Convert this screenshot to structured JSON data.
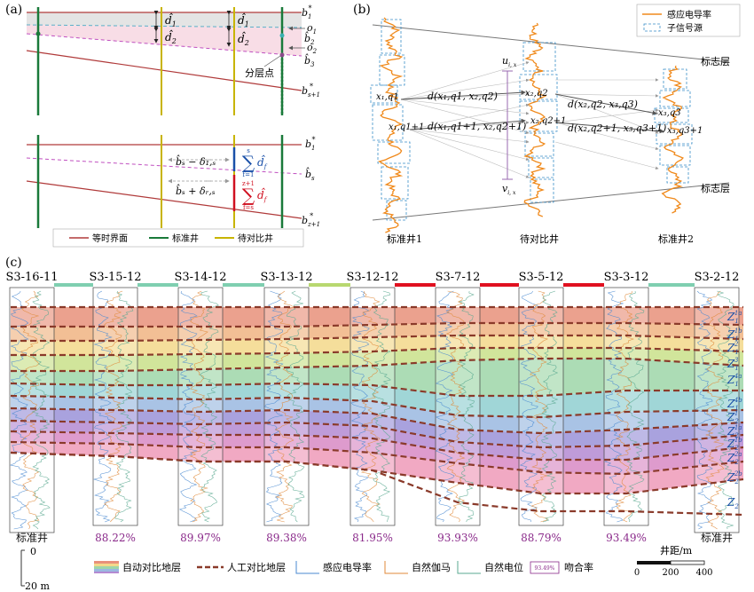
{
  "panel_a": {
    "label": "(a)",
    "top_labels": {
      "b1": "b",
      "b1_sub": "1",
      "b1_sup": "*",
      "b2": "b̂",
      "b2_sub": "2",
      "b3": "b̂",
      "b3_sub": "3",
      "bs1": "b",
      "bs1_sub": "s+1",
      "bs1_sup": "*",
      "o1": "o",
      "o1_sub": "1",
      "o2": "o",
      "o2_sub": "2"
    },
    "d_labels": {
      "d1a": "d̂",
      "d1a_sub": "1",
      "d2a": "d̂",
      "d2a_sub": "2",
      "d1b": "d̂",
      "d1b_sub": "1",
      "d2b": "d̂",
      "d2b_sub": "2"
    },
    "split_point": "分层点",
    "bottom_labels": {
      "b1": "b",
      "b1_sub": "1",
      "b1_sup": "*",
      "bs": "b̂",
      "bs_sub": "s",
      "bz1": "b",
      "bz1_sub": "z+1",
      "bz1_sup": "*"
    },
    "eq1": "b̂ₛ − δ₁,ₛ",
    "eq2": "b̂ₛ + δᵣ,ₛ",
    "sum1_top": "s",
    "sum1_bot": "f=1",
    "sum1_term": "d̂",
    "sum2_top": "z+1",
    "sum2_bot": "f=s",
    "sum2_term": "d̂",
    "sum_sub": "f",
    "legend": [
      "等时界面",
      "标准井",
      "待对比井"
    ],
    "colors": {
      "isochron": "#b03a3a",
      "standard": "#1a7a3a",
      "target": "#c8b400",
      "blue": "#1a50a8",
      "red": "#d01020"
    }
  },
  "panel_b": {
    "label": "(b)",
    "legend": [
      "感应电导率",
      "子信号源"
    ],
    "marker_top": "标志层",
    "marker_bot": "标志层",
    "u_label": "u",
    "u_sub": "i, x",
    "v_label": "v",
    "v_sub": "i, x",
    "x_labels": [
      "x₁,q1",
      "x₁,q1+1",
      "x₂,q2",
      "x₂,q2+1",
      "x₃,q3",
      "x₃,q3+1"
    ],
    "d_labels": [
      "d(x₁,q1, x₂,q2)",
      "d(x₁,q1+1, x₂,q2+1)",
      "d(x₂,q2, x₃,q3)",
      "d(x₂,q2+1, x₃,q3+1)"
    ],
    "wells": [
      "标准井1",
      "待对比井",
      "标准井2"
    ],
    "colors": {
      "log": "#f08a1c",
      "box": "#3a8ec8"
    }
  },
  "panel_c": {
    "label": "(c)",
    "wells": [
      "S3-16-11",
      "S3-15-12",
      "S3-14-12",
      "S3-13-12",
      "S3-12-12",
      "S3-7-12",
      "S3-5-12",
      "S3-3-12",
      "S3-2-12"
    ],
    "match_rates": [
      "标准井",
      "88.22%",
      "89.97%",
      "89.38%",
      "81.95%",
      "93.93%",
      "88.79%",
      "93.49%",
      "标准井"
    ],
    "layers": [
      "Z",
      "Z",
      "Z",
      "Z",
      "Z",
      "Z",
      "Z",
      "Z",
      "Z",
      "Z",
      "Z",
      "Z"
    ],
    "layer_sups": [
      "1a",
      "1b",
      "2",
      "3",
      "4a",
      "4b",
      "1",
      "1a",
      "1b",
      "2a",
      "2b",
      ""
    ],
    "layer_subs": [
      "1",
      "1",
      "1",
      "1",
      "1",
      "1",
      "2",
      "2",
      "2",
      "2",
      "2",
      "2"
    ],
    "bar_colors": [
      "#7fcfb0",
      "#7fcfb0",
      "#7fcfb0",
      "#b8d870",
      "#e01020",
      "#e01020",
      "#e01020",
      "#7fcfb0"
    ],
    "band_colors": [
      "#e8907a",
      "#f0b482",
      "#f3d88a",
      "#c9e08a",
      "#9ed6a8",
      "#8fcfd0",
      "#9ab8e0",
      "#9a92d8",
      "#b48ad2",
      "#d88ac4",
      "#ee9ab8"
    ]
  },
  "legend_c": {
    "auto": "自动对比地层",
    "manual": "人工对比地层",
    "conduct": "感应电导率",
    "gamma": "自然伽马",
    "potential": "自然电位",
    "rate_badge": "93.49%",
    "rate_label": "吻合率",
    "scale_top": "0",
    "scale_bot": "20 m",
    "distance_label": "井距/m",
    "distance_ticks": [
      "0",
      "200",
      "400"
    ],
    "colors": {
      "conduct": "#4a8ad0",
      "gamma": "#e08a3a",
      "potential": "#5aa890",
      "manual": "#8a3a2a",
      "badge": "#8a2a8a"
    }
  }
}
